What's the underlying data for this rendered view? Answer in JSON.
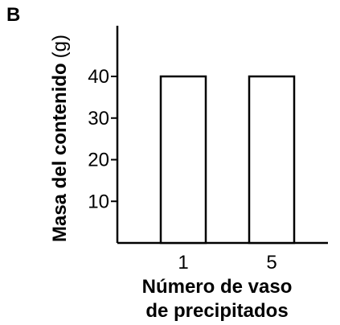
{
  "panel_label": "B",
  "chart_data": {
    "type": "bar",
    "categories": [
      "1",
      "5"
    ],
    "values": [
      40,
      40
    ],
    "y_ticks": [
      10,
      20,
      30,
      40
    ],
    "ylim": [
      0,
      50
    ],
    "ylabel_main": "Masa del contenido",
    "ylabel_unit": "(g)",
    "xlabel_line1": "Número de vaso",
    "xlabel_line2": "de precipitados",
    "grid": false,
    "legend": "none",
    "colors": {
      "bar_fill": "#ffffff",
      "stroke": "#000000"
    }
  }
}
